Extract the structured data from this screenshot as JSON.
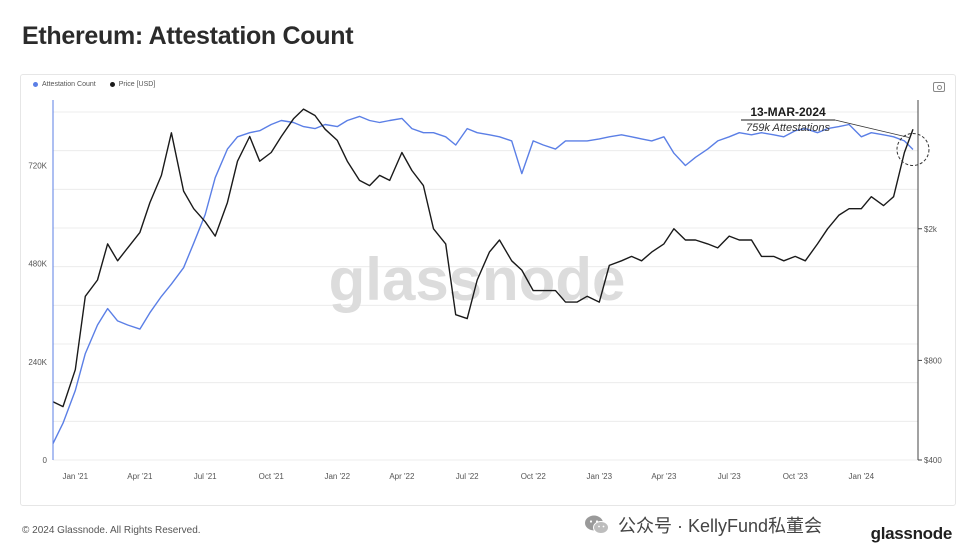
{
  "title": "Ethereum: Attestation Count",
  "legend": {
    "attestation": "Attestation Count",
    "price": "Price [USD]"
  },
  "annotation": {
    "date": "13-MAR-2024",
    "text": "759k Attestations"
  },
  "watermark": "glassnode",
  "footer": {
    "copyright": "© 2024 Glassnode. All Rights Reserved.",
    "wechat": "公众号 · KellyFund私董会",
    "brand": "glassnode"
  },
  "colors": {
    "attestation": "#5b7fe6",
    "price": "#1a1a1a",
    "grid": "#ececec"
  },
  "chart_data": {
    "type": "line",
    "title": "Ethereum: Attestation Count",
    "x_ticks": [
      "Jan '21",
      "Apr '21",
      "Jul '21",
      "Oct '21",
      "Jan '22",
      "Apr '22",
      "Jul '22",
      "Oct '22",
      "Jan '23",
      "Apr '23",
      "Jul '23",
      "Oct '23",
      "Jan '24"
    ],
    "x_range": [
      "2020-12-01",
      "2024-03-20"
    ],
    "y_left": {
      "ticks": [
        "0",
        "240K",
        "480K",
        "720K"
      ],
      "tick_values": [
        0,
        240000,
        480000,
        720000
      ],
      "range": [
        0,
        880000
      ]
    },
    "y_right": {
      "scale": "log",
      "ticks": [
        "$400",
        "$800",
        "$2k"
      ],
      "tick_values": [
        400,
        800,
        2000
      ],
      "range": [
        400,
        4900
      ]
    },
    "grid": true,
    "legend_position": "top-left",
    "series": [
      {
        "name": "Attestation Count",
        "axis": "left",
        "x": [
          "2020-12-01",
          "2020-12-15",
          "2021-01-01",
          "2021-01-15",
          "2021-02-01",
          "2021-02-15",
          "2021-03-01",
          "2021-03-15",
          "2021-04-01",
          "2021-04-15",
          "2021-05-01",
          "2021-05-15",
          "2021-06-01",
          "2021-06-15",
          "2021-07-01",
          "2021-07-15",
          "2021-08-01",
          "2021-08-15",
          "2021-09-01",
          "2021-09-15",
          "2021-10-01",
          "2021-10-15",
          "2021-11-01",
          "2021-11-15",
          "2021-12-01",
          "2021-12-15",
          "2022-01-01",
          "2022-01-15",
          "2022-02-01",
          "2022-02-15",
          "2022-03-01",
          "2022-03-15",
          "2022-04-01",
          "2022-04-15",
          "2022-05-01",
          "2022-05-15",
          "2022-06-01",
          "2022-06-15",
          "2022-07-01",
          "2022-07-15",
          "2022-08-01",
          "2022-08-15",
          "2022-09-01",
          "2022-09-15",
          "2022-10-01",
          "2022-10-15",
          "2022-11-01",
          "2022-11-15",
          "2022-12-01",
          "2022-12-15",
          "2023-01-01",
          "2023-01-15",
          "2023-02-01",
          "2023-02-15",
          "2023-03-01",
          "2023-03-15",
          "2023-04-01",
          "2023-04-15",
          "2023-05-01",
          "2023-05-15",
          "2023-06-01",
          "2023-06-15",
          "2023-07-01",
          "2023-07-15",
          "2023-08-01",
          "2023-08-15",
          "2023-09-01",
          "2023-09-15",
          "2023-10-01",
          "2023-10-15",
          "2023-11-01",
          "2023-11-15",
          "2023-12-01",
          "2023-12-15",
          "2024-01-01",
          "2024-01-15",
          "2024-02-01",
          "2024-02-15",
          "2024-03-01",
          "2024-03-13"
        ],
        "y": [
          40000,
          90000,
          170000,
          260000,
          330000,
          370000,
          340000,
          330000,
          320000,
          360000,
          400000,
          430000,
          470000,
          530000,
          600000,
          690000,
          760000,
          790000,
          800000,
          805000,
          820000,
          830000,
          825000,
          815000,
          810000,
          820000,
          815000,
          830000,
          840000,
          830000,
          825000,
          830000,
          835000,
          810000,
          800000,
          800000,
          790000,
          770000,
          810000,
          800000,
          795000,
          790000,
          780000,
          700000,
          780000,
          770000,
          760000,
          780000,
          780000,
          780000,
          785000,
          790000,
          795000,
          790000,
          785000,
          780000,
          790000,
          750000,
          720000,
          740000,
          760000,
          780000,
          790000,
          800000,
          795000,
          800000,
          795000,
          790000,
          805000,
          810000,
          800000,
          810000,
          815000,
          820000,
          790000,
          800000,
          795000,
          790000,
          780000,
          759000
        ]
      },
      {
        "name": "Price [USD]",
        "axis": "right",
        "x": [
          "2020-12-01",
          "2020-12-15",
          "2021-01-01",
          "2021-01-15",
          "2021-02-01",
          "2021-02-15",
          "2021-03-01",
          "2021-03-15",
          "2021-04-01",
          "2021-04-15",
          "2021-05-01",
          "2021-05-15",
          "2021-06-01",
          "2021-06-15",
          "2021-07-01",
          "2021-07-15",
          "2021-08-01",
          "2021-08-15",
          "2021-09-01",
          "2021-09-15",
          "2021-10-01",
          "2021-10-15",
          "2021-11-01",
          "2021-11-15",
          "2021-12-01",
          "2021-12-15",
          "2022-01-01",
          "2022-01-15",
          "2022-02-01",
          "2022-02-15",
          "2022-03-01",
          "2022-03-15",
          "2022-04-01",
          "2022-04-15",
          "2022-05-01",
          "2022-05-15",
          "2022-06-01",
          "2022-06-15",
          "2022-07-01",
          "2022-07-15",
          "2022-08-01",
          "2022-08-15",
          "2022-09-01",
          "2022-09-15",
          "2022-10-01",
          "2022-10-15",
          "2022-11-01",
          "2022-11-15",
          "2022-12-01",
          "2022-12-15",
          "2023-01-01",
          "2023-01-15",
          "2023-02-01",
          "2023-02-15",
          "2023-03-01",
          "2023-03-15",
          "2023-04-01",
          "2023-04-15",
          "2023-05-01",
          "2023-05-15",
          "2023-06-01",
          "2023-06-15",
          "2023-07-01",
          "2023-07-15",
          "2023-08-01",
          "2023-08-15",
          "2023-09-01",
          "2023-09-15",
          "2023-10-01",
          "2023-10-15",
          "2023-11-01",
          "2023-11-15",
          "2023-12-01",
          "2023-12-15",
          "2024-01-01",
          "2024-01-15",
          "2024-02-01",
          "2024-02-15",
          "2024-03-01",
          "2024-03-13"
        ],
        "y": [
          600,
          580,
          750,
          1250,
          1400,
          1800,
          1600,
          1750,
          1950,
          2400,
          2900,
          3900,
          2600,
          2300,
          2100,
          1900,
          2400,
          3200,
          3800,
          3200,
          3400,
          3800,
          4300,
          4600,
          4400,
          4000,
          3700,
          3200,
          2800,
          2700,
          2900,
          2800,
          3400,
          3000,
          2700,
          2000,
          1800,
          1100,
          1070,
          1400,
          1700,
          1850,
          1600,
          1500,
          1300,
          1300,
          1300,
          1200,
          1200,
          1250,
          1200,
          1550,
          1600,
          1650,
          1600,
          1700,
          1800,
          2000,
          1850,
          1850,
          1800,
          1750,
          1900,
          1850,
          1850,
          1650,
          1650,
          1600,
          1650,
          1600,
          1800,
          2000,
          2200,
          2300,
          2300,
          2500,
          2350,
          2500,
          3400,
          4000
        ]
      }
    ]
  }
}
